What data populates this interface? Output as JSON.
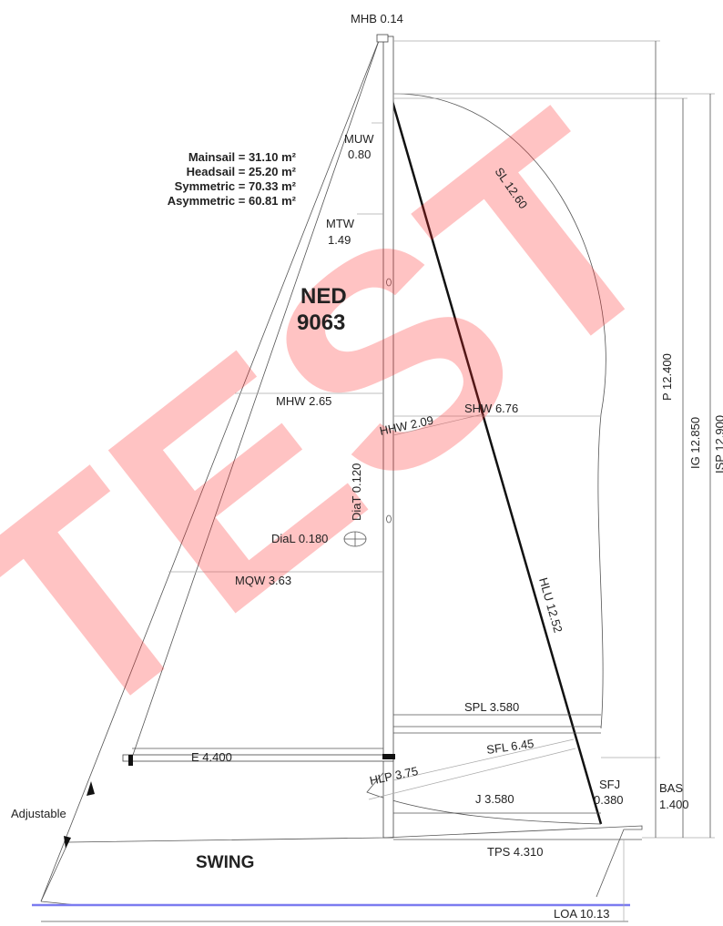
{
  "watermark": "TEST",
  "areas": [
    "Mainsail = 31.10 m²",
    "Headsail = 25.20 m²",
    "Symmetric = 70.33 m²",
    "Asymmetric = 60.81 m²"
  ],
  "sail_number": [
    "NED",
    "9063"
  ],
  "boat_name": "SWING",
  "adjustable": "Adjustable",
  "measurements": {
    "MHB": "MHB 0.14",
    "MUW": [
      "MUW",
      "0.80"
    ],
    "MTW": [
      "MTW",
      "1.49"
    ],
    "MHW": "MHW 2.65",
    "MQW": "MQW 3.63",
    "HHW": "HHW 2.09",
    "SHW": "SHW 6.76",
    "SL": "SL 12.60",
    "DiaT": "DiaT 0.120",
    "DiaL": "DiaL 0.180",
    "HLU": "HLU 12.52",
    "SPL": "SPL 3.580",
    "E": "E 4.400",
    "SFL": "SFL 6.45",
    "HLP": "HLP 3.75",
    "SFJ": [
      "SFJ",
      "0.380"
    ],
    "J": "J 3.580",
    "BAS": [
      "BAS",
      "1.400"
    ],
    "TPS": "TPS 4.310",
    "LOA": "LOA 10.13",
    "P": "P 12.400",
    "IG": "IG 12.850",
    "ISP": "ISP 12.900"
  }
}
